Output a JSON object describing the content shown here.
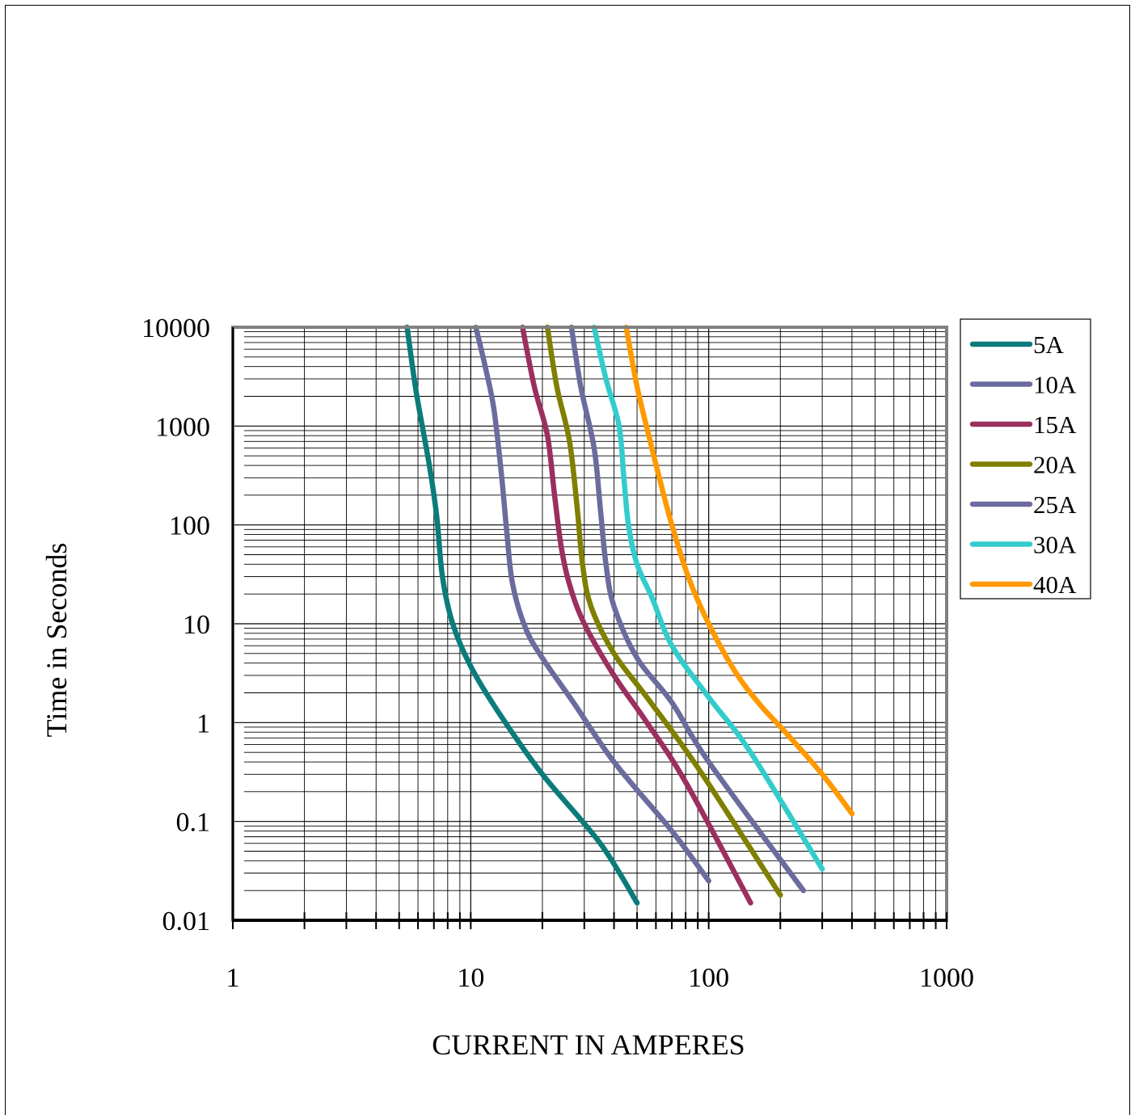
{
  "chart_data": {
    "type": "line",
    "title": "",
    "xlabel": "CURRENT IN AMPERES",
    "ylabel": "Time in Seconds",
    "x_scale": "log",
    "y_scale": "log",
    "xlim": [
      1,
      1000
    ],
    "ylim": [
      0.01,
      10000
    ],
    "x_ticks": [
      "1",
      "10",
      "100",
      "1000"
    ],
    "y_ticks": [
      "10000",
      "1000",
      "100",
      "10",
      "1",
      "0.1",
      "0.01"
    ],
    "grid": true,
    "legend_position": "right",
    "series": [
      {
        "name": "5A",
        "color": "#0b7b7b",
        "points": [
          [
            5.4,
            10000
          ],
          [
            5.9,
            2200
          ],
          [
            6.7,
            400
          ],
          [
            7.2,
            120
          ],
          [
            7.6,
            30
          ],
          [
            8.4,
            10
          ],
          [
            10,
            3.7
          ],
          [
            13,
            1.3
          ],
          [
            20,
            0.3
          ],
          [
            35,
            0.06
          ],
          [
            50,
            0.015
          ]
        ]
      },
      {
        "name": "10A",
        "color": "#6b6b9e",
        "points": [
          [
            10.5,
            10000
          ],
          [
            11.5,
            4000
          ],
          [
            12.5,
            1500
          ],
          [
            13.5,
            300
          ],
          [
            14.2,
            80
          ],
          [
            15,
            25
          ],
          [
            17,
            9
          ],
          [
            20,
            4.5
          ],
          [
            27,
            1.6
          ],
          [
            40,
            0.4
          ],
          [
            70,
            0.08
          ],
          [
            100,
            0.025
          ]
        ]
      },
      {
        "name": "15A",
        "color": "#9b2f5f",
        "points": [
          [
            16.5,
            10000
          ],
          [
            18.5,
            2500
          ],
          [
            21,
            800
          ],
          [
            22.5,
            200
          ],
          [
            24,
            60
          ],
          [
            26,
            25
          ],
          [
            30,
            10
          ],
          [
            40,
            3
          ],
          [
            55,
            1
          ],
          [
            80,
            0.25
          ],
          [
            150,
            0.015
          ]
        ]
      },
      {
        "name": "20A",
        "color": "#7f7f00",
        "points": [
          [
            21,
            10000
          ],
          [
            23,
            2500
          ],
          [
            26,
            700
          ],
          [
            28,
            150
          ],
          [
            29.5,
            40
          ],
          [
            32,
            15
          ],
          [
            40,
            5
          ],
          [
            55,
            1.8
          ],
          [
            90,
            0.35
          ],
          [
            200,
            0.018
          ]
        ]
      },
      {
        "name": "25A",
        "color": "#6b6b9e",
        "points": [
          [
            26.5,
            10000
          ],
          [
            29,
            2500
          ],
          [
            33,
            600
          ],
          [
            35,
            150
          ],
          [
            37,
            40
          ],
          [
            40,
            15
          ],
          [
            50,
            4.5
          ],
          [
            70,
            1.6
          ],
          [
            100,
            0.4
          ],
          [
            250,
            0.02
          ]
        ]
      },
      {
        "name": "30A",
        "color": "#33cccc",
        "points": [
          [
            33,
            10000
          ],
          [
            37,
            3000
          ],
          [
            42,
            1000
          ],
          [
            44,
            300
          ],
          [
            46,
            100
          ],
          [
            50,
            40
          ],
          [
            58,
            18
          ],
          [
            70,
            6
          ],
          [
            100,
            1.8
          ],
          [
            150,
            0.5
          ],
          [
            300,
            0.033
          ]
        ]
      },
      {
        "name": "40A",
        "color": "#ff9900",
        "points": [
          [
            45,
            10000
          ],
          [
            50,
            2500
          ],
          [
            56,
            800
          ],
          [
            62,
            300
          ],
          [
            70,
            100
          ],
          [
            82,
            30
          ],
          [
            100,
            10
          ],
          [
            130,
            3.2
          ],
          [
            165,
            1.5
          ],
          [
            210,
            0.8
          ],
          [
            300,
            0.3
          ],
          [
            400,
            0.12
          ]
        ]
      }
    ]
  }
}
